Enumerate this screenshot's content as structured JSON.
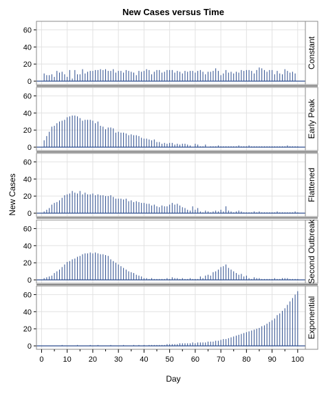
{
  "colors": {
    "stem": "#2a4b8d",
    "grid": "#e2e2e2",
    "frame": "#8a8a8a",
    "strip_bg": "#ffffff",
    "text": "#000000"
  },
  "chart_data": {
    "type": "bar",
    "title": "New Cases versus Time",
    "xlabel": "Day",
    "ylabel": "New Cases",
    "xlim": [
      -2,
      103
    ],
    "ylim": [
      -4,
      70
    ],
    "x_ticks": [
      0,
      10,
      20,
      30,
      40,
      50,
      60,
      70,
      80,
      90,
      100
    ],
    "y_ticks": [
      0,
      20,
      40,
      60
    ],
    "grid": true,
    "x": [
      0,
      1,
      2,
      3,
      4,
      5,
      6,
      7,
      8,
      9,
      10,
      11,
      12,
      13,
      14,
      15,
      16,
      17,
      18,
      19,
      20,
      21,
      22,
      23,
      24,
      25,
      26,
      27,
      28,
      29,
      30,
      31,
      32,
      33,
      34,
      35,
      36,
      37,
      38,
      39,
      40,
      41,
      42,
      43,
      44,
      45,
      46,
      47,
      48,
      49,
      50,
      51,
      52,
      53,
      54,
      55,
      56,
      57,
      58,
      59,
      60,
      61,
      62,
      63,
      64,
      65,
      66,
      67,
      68,
      69,
      70,
      71,
      72,
      73,
      74,
      75,
      76,
      77,
      78,
      79,
      80,
      81,
      82,
      83,
      84,
      85,
      86,
      87,
      88,
      89,
      90,
      91,
      92,
      93,
      94,
      95,
      96,
      97,
      98,
      99,
      100
    ],
    "series": [
      {
        "name": "Constant",
        "values": [
          0,
          9,
          7,
          7,
          8,
          5,
          12,
          10,
          11,
          8,
          5,
          13,
          3,
          13,
          8,
          8,
          14,
          9,
          11,
          12,
          12,
          13,
          13,
          14,
          13,
          14,
          12,
          12,
          14,
          10,
          12,
          12,
          10,
          13,
          12,
          11,
          10,
          7,
          12,
          11,
          12,
          14,
          13,
          8,
          11,
          13,
          13,
          10,
          11,
          13,
          13,
          13,
          10,
          12,
          11,
          9,
          12,
          11,
          12,
          12,
          10,
          12,
          13,
          11,
          8,
          11,
          11,
          12,
          15,
          12,
          7,
          9,
          13,
          10,
          11,
          9,
          11,
          10,
          13,
          12,
          13,
          13,
          12,
          9,
          13,
          16,
          15,
          13,
          11,
          13,
          13,
          8,
          12,
          9,
          8,
          14,
          12,
          10,
          11,
          9,
          0
        ]
      },
      {
        "name": "Early Peak",
        "values": [
          0,
          8,
          13,
          18,
          24,
          25,
          28,
          30,
          31,
          32,
          35,
          36,
          37,
          37,
          36,
          34,
          31,
          32,
          32,
          32,
          31,
          28,
          30,
          25,
          24,
          21,
          23,
          23,
          22,
          17,
          18,
          17,
          17,
          16,
          14,
          15,
          14,
          14,
          13,
          11,
          10,
          10,
          9,
          8,
          9,
          6,
          6,
          4,
          5,
          4,
          5,
          5,
          3,
          4,
          3,
          4,
          4,
          3,
          2,
          0,
          4,
          3,
          1,
          1,
          3,
          0,
          1,
          1,
          1,
          2,
          1,
          1,
          1,
          1,
          1,
          1,
          1,
          2,
          1,
          1,
          1,
          2,
          1,
          1,
          1,
          1,
          1,
          1,
          1,
          1,
          1,
          1,
          1,
          1,
          1,
          1,
          2,
          1,
          1,
          1,
          1
        ]
      },
      {
        "name": "Flattened",
        "values": [
          0,
          2,
          4,
          6,
          10,
          12,
          13,
          15,
          18,
          21,
          22,
          23,
          26,
          24,
          23,
          26,
          22,
          24,
          22,
          22,
          23,
          21,
          22,
          21,
          21,
          20,
          20,
          21,
          19,
          17,
          17,
          17,
          16,
          17,
          14,
          15,
          13,
          14,
          13,
          12,
          12,
          11,
          11,
          9,
          10,
          8,
          7,
          9,
          8,
          8,
          10,
          12,
          10,
          11,
          9,
          7,
          6,
          4,
          3,
          8,
          4,
          6,
          2,
          1,
          3,
          2,
          1,
          2,
          3,
          2,
          4,
          2,
          8,
          3,
          2,
          1,
          2,
          3,
          2,
          1,
          1,
          1,
          1,
          2,
          1,
          2,
          1,
          1,
          1,
          1,
          1,
          1,
          2,
          1,
          1,
          1,
          1,
          1,
          1,
          2,
          1
        ]
      },
      {
        "name": "Second Outbreak",
        "values": [
          0,
          2,
          3,
          4,
          5,
          8,
          10,
          12,
          15,
          18,
          21,
          22,
          24,
          25,
          27,
          28,
          30,
          31,
          31,
          32,
          31,
          32,
          31,
          30,
          30,
          29,
          28,
          24,
          22,
          20,
          18,
          16,
          14,
          12,
          10,
          9,
          8,
          6,
          5,
          4,
          2,
          2,
          1,
          2,
          1,
          1,
          1,
          1,
          1,
          2,
          1,
          3,
          2,
          2,
          1,
          2,
          1,
          1,
          2,
          1,
          1,
          1,
          4,
          2,
          5,
          6,
          5,
          9,
          10,
          12,
          15,
          16,
          18,
          14,
          12,
          10,
          8,
          6,
          7,
          4,
          5,
          2,
          1,
          3,
          2,
          2,
          1,
          1,
          1,
          1,
          1,
          2,
          1,
          1,
          2,
          2,
          2,
          1,
          1,
          1,
          1
        ]
      },
      {
        "name": "Exponential",
        "values": [
          0,
          0,
          0,
          0,
          0,
          0,
          0,
          0,
          1,
          0,
          0,
          0,
          0,
          0,
          1,
          0,
          0,
          0,
          0,
          1,
          0,
          0,
          1,
          0,
          0,
          0,
          0,
          1,
          0,
          0,
          0,
          0,
          1,
          0,
          0,
          0,
          1,
          0,
          1,
          0,
          1,
          0,
          1,
          1,
          1,
          1,
          1,
          1,
          1,
          2,
          2,
          2,
          2,
          2,
          3,
          3,
          3,
          3,
          3,
          4,
          3,
          4,
          4,
          4,
          4,
          5,
          5,
          5,
          6,
          6,
          7,
          8,
          8,
          9,
          10,
          11,
          12,
          13,
          14,
          15,
          16,
          17,
          18,
          19,
          20,
          21,
          23,
          24,
          26,
          28,
          30,
          32,
          36,
          38,
          41,
          44,
          48,
          52,
          56,
          60,
          64
        ]
      }
    ]
  }
}
